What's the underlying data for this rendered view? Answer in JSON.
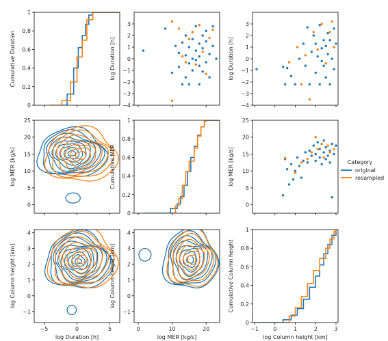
{
  "colors": {
    "original": "#1f77b4",
    "resampled": "#ff7f0e"
  },
  "legend": {
    "title": "Category",
    "items": [
      "original",
      "resampled"
    ]
  },
  "chart_data": [
    {
      "id": "p00",
      "type": "line",
      "subtype": "ecdf",
      "xlabel": "",
      "ylabel": "Cumulative Duration",
      "xlim": [
        -6.5,
        6.5
      ],
      "ylim": [
        0,
        1
      ],
      "xticks": [
        -5,
        0,
        5
      ],
      "yticks": [
        0,
        0.2,
        0.4,
        0.6,
        0.8,
        1.0
      ],
      "show_x_ticklabels": false,
      "series": [
        {
          "name": "original",
          "x": [
            -2.3,
            -1.5,
            -0.5,
            0.2,
            0.8,
            1.3,
            1.8,
            2.4
          ],
          "y": [
            0.0,
            0.12,
            0.4,
            0.62,
            0.75,
            0.87,
            0.97,
            1.0
          ]
        },
        {
          "name": "resampled",
          "x": [
            -4.2,
            -2.3,
            -1.0,
            0.0,
            0.8,
            1.5,
            2.4
          ],
          "y": [
            0.0,
            0.05,
            0.25,
            0.52,
            0.7,
            0.92,
            1.0
          ]
        }
      ]
    },
    {
      "id": "p01",
      "type": "scatter",
      "xlabel": "",
      "ylabel": "log Duration [h]",
      "xlim": [
        -1.2,
        24
      ],
      "ylim": [
        -4,
        4
      ],
      "xticks": [
        0,
        10,
        20
      ],
      "yticks": [
        -4,
        -3,
        -2,
        -1,
        0,
        1,
        2,
        3
      ],
      "show_x_ticklabels": false,
      "series": [
        {
          "name": "original",
          "points": [
            [
              1.5,
              0.7
            ],
            [
              8,
              2.6
            ],
            [
              10,
              -1.2
            ],
            [
              11,
              1.1
            ],
            [
              12,
              0.5
            ],
            [
              12,
              -0.7
            ],
            [
              13,
              1.4
            ],
            [
              13,
              -2.2
            ],
            [
              14,
              0.3
            ],
            [
              14,
              2.0
            ],
            [
              14,
              -1.6
            ],
            [
              15,
              1.0
            ],
            [
              15,
              -0.4
            ],
            [
              15,
              -2.2
            ],
            [
              16,
              2.3
            ],
            [
              16,
              0.0
            ],
            [
              16,
              1.7
            ],
            [
              16,
              -1.0
            ],
            [
              17,
              0.7
            ],
            [
              17,
              -0.1
            ],
            [
              17,
              2.8
            ],
            [
              18,
              1.3
            ],
            [
              18,
              -0.6
            ],
            [
              18,
              0.2
            ],
            [
              18,
              -2.2
            ],
            [
              19,
              2.0
            ],
            [
              19,
              -1.1
            ],
            [
              19,
              0.9
            ],
            [
              20,
              1.5
            ],
            [
              20,
              -0.3
            ],
            [
              20,
              2.4
            ],
            [
              21,
              0.4
            ],
            [
              21,
              -1.6
            ],
            [
              22,
              2.8
            ],
            [
              22,
              1.1
            ],
            [
              23,
              0.0
            ]
          ]
        },
        {
          "name": "resampled",
          "points": [
            [
              10,
              3.2
            ],
            [
              10,
              -3.6
            ],
            [
              12,
              2.6
            ],
            [
              13,
              0.2
            ],
            [
              14,
              -0.3
            ],
            [
              15,
              1.7
            ],
            [
              16,
              2.3
            ],
            [
              17,
              -0.5
            ],
            [
              18,
              2.9
            ],
            [
              19,
              0.6
            ],
            [
              20,
              -1.3
            ],
            [
              21,
              1.8
            ],
            [
              22,
              2.5
            ]
          ]
        }
      ]
    },
    {
      "id": "p02",
      "type": "scatter",
      "xlabel": "",
      "ylabel": "log Duration [h]",
      "xlim": [
        -1.1,
        3.1
      ],
      "ylim": [
        -4,
        4
      ],
      "xticks": [
        -1,
        0,
        1,
        2,
        3
      ],
      "yticks": [
        -4,
        -3,
        -2,
        -1,
        0,
        1,
        2,
        3
      ],
      "show_x_ticklabels": false,
      "series": [
        {
          "name": "original",
          "points": [
            [
              -0.9,
              -0.9
            ],
            [
              0.4,
              -0.7
            ],
            [
              0.5,
              -2.2
            ],
            [
              0.6,
              -0.8
            ],
            [
              0.8,
              -1.5
            ],
            [
              1.0,
              -2.2
            ],
            [
              1.2,
              0.0
            ],
            [
              1.4,
              1.3
            ],
            [
              1.5,
              -0.6
            ],
            [
              1.6,
              2.7
            ],
            [
              1.7,
              -2.2
            ],
            [
              1.8,
              0.6
            ],
            [
              1.9,
              2.0
            ],
            [
              2.0,
              -1.2
            ],
            [
              2.0,
              1.3
            ],
            [
              2.1,
              0.2
            ],
            [
              2.2,
              -2.2
            ],
            [
              2.2,
              2.9
            ],
            [
              2.3,
              0.9
            ],
            [
              2.3,
              -0.2
            ],
            [
              2.4,
              1.6
            ],
            [
              2.4,
              -0.6
            ],
            [
              2.5,
              1.1
            ],
            [
              2.5,
              -1.6
            ],
            [
              2.6,
              0.4
            ],
            [
              2.6,
              2.2
            ],
            [
              2.7,
              -2.2
            ],
            [
              2.7,
              1.6
            ],
            [
              2.8,
              0.0
            ],
            [
              2.9,
              2.6
            ],
            [
              2.9,
              -0.9
            ],
            [
              3.0,
              1.3
            ]
          ]
        },
        {
          "name": "resampled",
          "points": [
            [
              0.7,
              -0.3
            ],
            [
              1.1,
              1.0
            ],
            [
              1.3,
              -2.2
            ],
            [
              1.5,
              0.3
            ],
            [
              1.7,
              -3.5
            ],
            [
              1.9,
              2.3
            ],
            [
              2.1,
              0.8
            ],
            [
              2.3,
              3.0
            ],
            [
              2.5,
              -0.4
            ],
            [
              2.7,
              2.3
            ],
            [
              2.8,
              3.2
            ],
            [
              2.9,
              1.0
            ]
          ]
        }
      ]
    },
    {
      "id": "p10",
      "type": "contour",
      "subtype": "kde",
      "xlabel": "",
      "ylabel": "log MER [kg/s]",
      "xlim": [
        -6.5,
        6.5
      ],
      "ylim": [
        -2.5,
        25
      ],
      "xticks": [
        -5,
        0,
        5
      ],
      "yticks": [
        0,
        5,
        10,
        15,
        20,
        25
      ],
      "show_x_ticklabels": false,
      "series": [
        {
          "name": "original",
          "cx": -0.8,
          "cy": 15.2,
          "rx0": 5.2,
          "ry0": 7.2,
          "levels": 9,
          "extra": [
            [
              -0.6,
              2.0,
              1.1,
              1.5
            ]
          ]
        },
        {
          "name": "resampled",
          "cx": 0.6,
          "cy": 14.6,
          "rx0": 5.4,
          "ry0": 8.0,
          "levels": 7,
          "extra": []
        }
      ]
    },
    {
      "id": "p11",
      "type": "line",
      "subtype": "ecdf",
      "xlabel": "",
      "ylabel": "Cumulative MER",
      "xlim": [
        -1.2,
        24
      ],
      "ylim": [
        0,
        1
      ],
      "xticks": [
        0,
        10,
        20
      ],
      "yticks": [
        0,
        0.2,
        0.4,
        0.6,
        0.8,
        1.0
      ],
      "show_x_ticklabels": false,
      "series": [
        {
          "name": "original",
          "x": [
            1.6,
            9.5,
            11.5,
            12.5,
            13.5,
            14.5,
            15.5,
            16.5,
            17.5,
            18.5,
            19.5,
            20.0
          ],
          "y": [
            0.0,
            0.05,
            0.1,
            0.18,
            0.3,
            0.45,
            0.6,
            0.72,
            0.84,
            0.93,
            0.99,
            1.0
          ]
        },
        {
          "name": "resampled",
          "x": [
            9.5,
            11.0,
            12.0,
            13.0,
            14.0,
            15.0,
            16.5,
            17.5,
            18.5,
            19.5,
            20.0
          ],
          "y": [
            0.0,
            0.08,
            0.16,
            0.3,
            0.45,
            0.56,
            0.7,
            0.83,
            0.93,
            0.99,
            1.0
          ]
        }
      ]
    },
    {
      "id": "p12",
      "type": "scatter",
      "xlabel": "",
      "ylabel": "log MER [kg/s]",
      "xlim": [
        -1.1,
        3.1
      ],
      "ylim": [
        -2.5,
        25
      ],
      "xticks": [
        -1,
        0,
        1,
        2,
        3
      ],
      "yticks": [
        0,
        5,
        10,
        15,
        20,
        25
      ],
      "show_x_ticklabels": false,
      "series": [
        {
          "name": "original",
          "points": [
            [
              0.4,
              2.8
            ],
            [
              0.5,
              13.5
            ],
            [
              0.6,
              10.5
            ],
            [
              0.7,
              6.0
            ],
            [
              0.8,
              12.0
            ],
            [
              0.9,
              7.5
            ],
            [
              1.0,
              10.0
            ],
            [
              1.1,
              14.0
            ],
            [
              1.2,
              11.5
            ],
            [
              1.3,
              8.0
            ],
            [
              1.4,
              13.0
            ],
            [
              1.5,
              15.5
            ],
            [
              1.6,
              12.5
            ],
            [
              1.7,
              16.0
            ],
            [
              1.8,
              14.5
            ],
            [
              1.9,
              17.5
            ],
            [
              2.0,
              13.0
            ],
            [
              2.0,
              15.0
            ],
            [
              2.1,
              18.5
            ],
            [
              2.2,
              14.0
            ],
            [
              2.2,
              16.5
            ],
            [
              2.3,
              12.0
            ],
            [
              2.4,
              15.5
            ],
            [
              2.4,
              19.0
            ],
            [
              2.5,
              13.5
            ],
            [
              2.5,
              17.0
            ],
            [
              2.6,
              14.5
            ],
            [
              2.7,
              16.0
            ],
            [
              2.7,
              12.5
            ],
            [
              2.8,
              2.2
            ],
            [
              2.8,
              18.0
            ],
            [
              2.9,
              15.0
            ],
            [
              3.0,
              17.5
            ]
          ]
        },
        {
          "name": "resampled",
          "points": [
            [
              0.5,
              13.8
            ],
            [
              1.0,
              9.5
            ],
            [
              1.3,
              12.5
            ],
            [
              1.6,
              13.5
            ],
            [
              1.8,
              15.5
            ],
            [
              2.0,
              20.0
            ],
            [
              2.1,
              16.5
            ],
            [
              2.3,
              18.0
            ],
            [
              2.4,
              14.0
            ],
            [
              2.6,
              17.5
            ],
            [
              2.7,
              15.5
            ],
            [
              2.9,
              16.5
            ]
          ]
        }
      ]
    },
    {
      "id": "p20",
      "type": "contour",
      "subtype": "kde",
      "xlabel": "log Duration [h]",
      "ylabel": "log Column height [km]",
      "xlim": [
        -6.5,
        6.5
      ],
      "ylim": [
        -1.7,
        4.2
      ],
      "xticks": [
        -5,
        0,
        5
      ],
      "yticks": [
        -1,
        0,
        1,
        2,
        3,
        4
      ],
      "show_x_ticklabels": true,
      "series": [
        {
          "name": "original",
          "cx": 0.2,
          "cy": 2.2,
          "rx0": 5.0,
          "ry0": 1.8,
          "levels": 10,
          "extra": [
            [
              -0.8,
              -0.9,
              0.7,
              0.3
            ]
          ]
        },
        {
          "name": "resampled",
          "cx": 0.8,
          "cy": 2.3,
          "rx0": 5.2,
          "ry0": 1.9,
          "levels": 7,
          "extra": []
        }
      ]
    },
    {
      "id": "p21",
      "type": "contour",
      "subtype": "kde",
      "xlabel": "log MER [kg/s]",
      "ylabel": "log Column height [km]",
      "xlim": [
        -1.2,
        24
      ],
      "ylim": [
        -1.7,
        4.2
      ],
      "xticks": [
        0,
        10,
        20
      ],
      "yticks": [
        -1,
        0,
        1,
        2,
        3,
        4
      ],
      "show_x_ticklabels": true,
      "series": [
        {
          "name": "original",
          "cx": 15.3,
          "cy": 2.3,
          "rx0": 8.0,
          "ry0": 1.9,
          "levels": 8,
          "extra": [
            [
              2.0,
              2.6,
              1.8,
              0.4
            ]
          ]
        },
        {
          "name": "resampled",
          "cx": 15.8,
          "cy": 2.3,
          "rx0": 7.2,
          "ry0": 1.8,
          "levels": 6,
          "extra": []
        }
      ]
    },
    {
      "id": "p22",
      "type": "line",
      "subtype": "ecdf",
      "xlabel": "log Column height [km]",
      "ylabel": "Cumulative Column height",
      "xlim": [
        -1.1,
        3.1
      ],
      "ylim": [
        0,
        1
      ],
      "xticks": [
        -1,
        0,
        1,
        2,
        3
      ],
      "yticks": [
        0,
        0.2,
        0.4,
        0.6,
        0.8,
        1.0
      ],
      "show_x_ticklabels": true,
      "series": [
        {
          "name": "original",
          "x": [
            -1.0,
            0.4,
            0.8,
            1.1,
            1.4,
            1.7,
            2.0,
            2.2,
            2.4,
            2.6,
            2.8,
            3.0
          ],
          "y": [
            0.0,
            0.03,
            0.08,
            0.15,
            0.25,
            0.38,
            0.5,
            0.62,
            0.74,
            0.84,
            0.94,
            1.0
          ]
        },
        {
          "name": "resampled",
          "x": [
            0.3,
            0.7,
            1.0,
            1.3,
            1.6,
            1.9,
            2.2,
            2.5,
            2.7,
            2.9,
            3.0
          ],
          "y": [
            0.0,
            0.07,
            0.16,
            0.28,
            0.42,
            0.56,
            0.69,
            0.8,
            0.9,
            0.98,
            1.0
          ]
        }
      ]
    }
  ]
}
